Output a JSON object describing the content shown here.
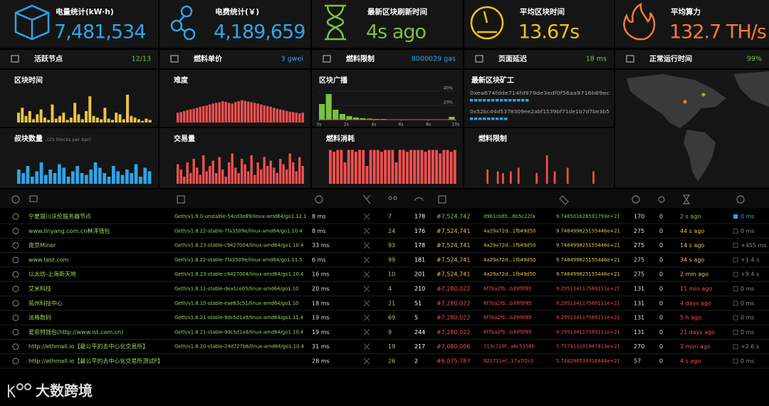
{
  "stats": [
    {
      "label": "电量统计(kW·h)",
      "value": "7,481,534",
      "color": "#2fa4e7"
    },
    {
      "label": "电费统计(￥)",
      "value": "4,189,659",
      "color": "#2fa4e7"
    },
    {
      "label": "最新区块刷新时间",
      "value": "4s ago",
      "color": "#7bc043"
    },
    {
      "label": "平均区块时间",
      "value": "13.67s",
      "color": "#f0c419"
    },
    {
      "label": "平均算力",
      "value": "132.7 TH/s",
      "color": "#f57c39"
    }
  ],
  "info": [
    {
      "label": "活跃节点",
      "value": "12/13",
      "color": "#7bc043"
    },
    {
      "label": "燃料单价",
      "value": "3 gwei",
      "color": "#2fa4e7"
    },
    {
      "label": "燃料限制",
      "value": "8000029 gas",
      "color": "#2fa4e7"
    },
    {
      "label": "页面延迟",
      "value": "18 ms",
      "color": "#7bc043"
    },
    {
      "label": "正常运行时间",
      "value": "99%",
      "color": "#7bc043"
    }
  ],
  "charts": [
    {
      "title": "区块时间",
      "color": "#e8c547",
      "ylim": [
        0,
        100
      ],
      "values": [
        30,
        45,
        20,
        35,
        10,
        25,
        40,
        15,
        8,
        55,
        12,
        20,
        30,
        8,
        15,
        60,
        25,
        10,
        35,
        80,
        20,
        15,
        10,
        45,
        12,
        8,
        30,
        25,
        10,
        85,
        20,
        15,
        10,
        5,
        12,
        8
      ]
    },
    {
      "title": "难度",
      "color": "#f05050",
      "ylim": [
        0,
        100
      ],
      "values": [
        30,
        32,
        35,
        38,
        40,
        42,
        45,
        48,
        50,
        52,
        55,
        58,
        60,
        62,
        65,
        63,
        60,
        58,
        62,
        65,
        68,
        66,
        64,
        62,
        60,
        58,
        55,
        52,
        50,
        48,
        45,
        42,
        40,
        38,
        35,
        33,
        32,
        30,
        28,
        30
      ]
    },
    {
      "title": "叔块数量",
      "subtitle": "(25 blocks per bar)",
      "color": "#2fa4e7",
      "ylim": [
        0,
        100
      ],
      "values": [
        40,
        30,
        50,
        20,
        35,
        60,
        25,
        40,
        30,
        55,
        45,
        20,
        35,
        50,
        30,
        25,
        40,
        60,
        45,
        30,
        20,
        50,
        35,
        25,
        40,
        30,
        55,
        20,
        45,
        35
      ]
    },
    {
      "title": "交易量",
      "color": "#f05050",
      "ylim": [
        0,
        100
      ],
      "values": [
        55,
        40,
        20,
        60,
        30,
        70,
        45,
        25,
        80,
        35,
        50,
        65,
        30,
        75,
        40,
        20,
        60,
        85,
        45,
        30,
        70,
        55,
        35,
        80,
        25,
        60,
        40,
        75,
        50,
        65,
        45,
        30,
        70,
        55,
        40,
        85,
        60,
        35,
        75,
        50
      ]
    },
    {
      "title": "燃料消耗",
      "color": "#f05050",
      "ylim": [
        0,
        100
      ],
      "values": [
        95,
        90,
        95,
        95,
        60,
        95,
        95,
        90,
        95,
        95,
        50,
        95,
        95,
        95,
        90,
        95,
        95,
        95,
        60,
        95,
        95,
        90,
        95,
        95,
        95,
        95,
        90,
        95,
        95,
        95,
        85,
        95,
        95,
        90,
        95
      ]
    },
    {
      "title": "燃料限制",
      "color": "#f05050",
      "ylim": [
        0,
        100
      ],
      "values": [
        0,
        0,
        40,
        0,
        0,
        0,
        35,
        0,
        30,
        0,
        0,
        35,
        0,
        0,
        45,
        0,
        0,
        0,
        0,
        0,
        0,
        30,
        0,
        0,
        0,
        80,
        0,
        0,
        35,
        0,
        0,
        0,
        0,
        45,
        0,
        0,
        0,
        0,
        0,
        0,
        0,
        0,
        0,
        35,
        0,
        0,
        0,
        0,
        0
      ]
    }
  ],
  "broadcast": {
    "title": "区块广播",
    "color": "#7bc043",
    "x": [
      0,
      0.5,
      1,
      1.5,
      2,
      2.5,
      3,
      3.5,
      4,
      4.5,
      5,
      5.5,
      6,
      6.5,
      7,
      7.5,
      8,
      8.5,
      9,
      9.5
    ],
    "values": [
      22,
      36,
      14,
      8,
      5,
      3,
      2,
      1.5,
      1,
      1,
      0.5,
      0.5,
      0.5,
      0.5,
      0.5,
      0.5,
      0.5,
      0.5,
      0.5,
      4
    ],
    "xlim": [
      0,
      10
    ],
    "ylim": [
      0,
      40
    ],
    "yticks": [
      {
        "value": 20,
        "label": "20%"
      },
      {
        "value": 40,
        "label": "40%"
      }
    ],
    "xticks": [
      {
        "value": 0,
        "label": "0s"
      },
      {
        "value": 2,
        "label": "2s"
      },
      {
        "value": 4,
        "label": "4s"
      },
      {
        "value": 6,
        "label": "6s"
      },
      {
        "value": 8,
        "label": "8s"
      },
      {
        "value": 10,
        "label": "10s"
      }
    ]
  },
  "miners": {
    "title": "最新区块矿工",
    "items": [
      {
        "hash": "0xea674fdde714fd979de3edf0f56aa9716b89ec",
        "blocks": 14
      },
      {
        "hash": "0x52bc44d5378309ee2abf1539bf71de1b7d7be3b5",
        "blocks": 9
      }
    ]
  },
  "table": {
    "rows": [
      [
        "宁夏银川沃伦服务器节点",
        "Geth/v1.9.0-unstable-54cd3e89/linux-amd64/go1.12.1",
        "8 ms",
        "7",
        "178",
        "#7,524,742",
        "d961cb65...6b5c22fa",
        "9.748501626591793e+21",
        "170",
        "0",
        "2 s ago",
        "0 ms"
      ],
      [
        "www.linyang.com.cn林洋钱包",
        "Geth/v1.8.22-stable-7fa3509e/linux-amd64/go1.10.4",
        "8 ms",
        "24",
        "176",
        "#7,524,741",
        "4a29a72d...1fb49d50",
        "9.748499825155446e+21",
        "275",
        "0",
        "44 s ago",
        "0 ms"
      ],
      [
        "南京Miner",
        "Geth/v1.8.23-stable-c9427004/linux-amd64/go1.10.4",
        "33 ms",
        "93",
        "178",
        "#7,524,741",
        "4a29a72d...1fb49d50",
        "9.748499825155446e+21",
        "275",
        "0",
        "14 s ago",
        "+455 ms"
      ],
      [
        "www.test.com",
        "Geth/v1.8.22-stable-7fa3509e/linux-amd64/go1.11.5",
        "6 ms",
        "99",
        "181",
        "#7,524,741",
        "4a29a72d...1fb49d50",
        "9.748499825155446e+21",
        "275",
        "0",
        "34 s ago",
        "+1.4 s"
      ],
      [
        "以太坊-上海新天地",
        "Geth/v1.8.23-stable-c9427004/linux-amd64/go1.10.4",
        "16 ms",
        "10",
        "201",
        "#7,524,741",
        "4a29a72d...1fb49d50",
        "9.748499825155446e+21",
        "275",
        "0",
        "2 min ago",
        "+9.4 s"
      ],
      [
        "艾米科技",
        "Geth/v1.8.11-stable-dea1ce05/linux-amd64/go1.10",
        "20 ms",
        "4",
        "210",
        "#7,280,022",
        "6f7ba2fb...b39f0f85",
        "9.295134117569111e+21",
        "131",
        "0",
        "11 min ago",
        "0 ms"
      ],
      [
        "苑州科技中心",
        "Geth/v1.8.10-stable-eae63c51/linux-amd64/go1.10",
        "18 ms",
        "21",
        "51",
        "#7,280,022",
        "6f7ba2fb...b39f0f85",
        "9.295134117569111e+21",
        "131",
        "0",
        "4 days ago",
        "0 ms"
      ],
      [
        "派格数码",
        "Geth/v1.8.21-stable-9dc5d1a9/linux-amd64/go1.11.4",
        "19 ms",
        "69",
        "5",
        "#7,280,022",
        "6f7ba2fb...b39f0f85",
        "9.295134117569111e+21",
        "131",
        "0",
        "5 h ago",
        "0 ms"
      ],
      [
        "爱思特钱包(http://www.ist.com.cn)",
        "Geth/v1.8.21-stable-9dc5d1a9/linux-amd64/go1.10.4",
        "19 ms",
        "9",
        "244",
        "#7,280,022",
        "6f7ba2fb...b39f0f85",
        "9.295134117569111e+21",
        "131",
        "0",
        "21 days ago",
        "0 ms"
      ],
      [
        "http://ethmall.io【最公平的去中心化交易所】",
        "Geth/v1.8.20-stable-24d727b6/linux-amd64/go1.10.4",
        "31 ms",
        "19",
        "217",
        "#7,080,006",
        "213c720f...a6c5358b",
        "5.757913281947813e+21",
        "270",
        "0",
        "3 mon ago",
        "+2.6 s"
      ],
      [
        "http://ethmall.io【最公平的去中心化交易所测试P】",
        null,
        "28 ms",
        "26",
        "2",
        "#6,075,787",
        "921711ef...17a7f2c1",
        "5.748298539316848e+21",
        "57",
        "0",
        "4 s ago",
        "0 ms"
      ]
    ],
    "row_colors": [
      "#8cc84b",
      "#e8c547",
      "#e8c547",
      "#e8c547",
      "#e8c547",
      "#f05050",
      "#f05050",
      "#f05050",
      "#f05050",
      "#f05050",
      "#f05050"
    ]
  },
  "watermark": "大数跨境"
}
